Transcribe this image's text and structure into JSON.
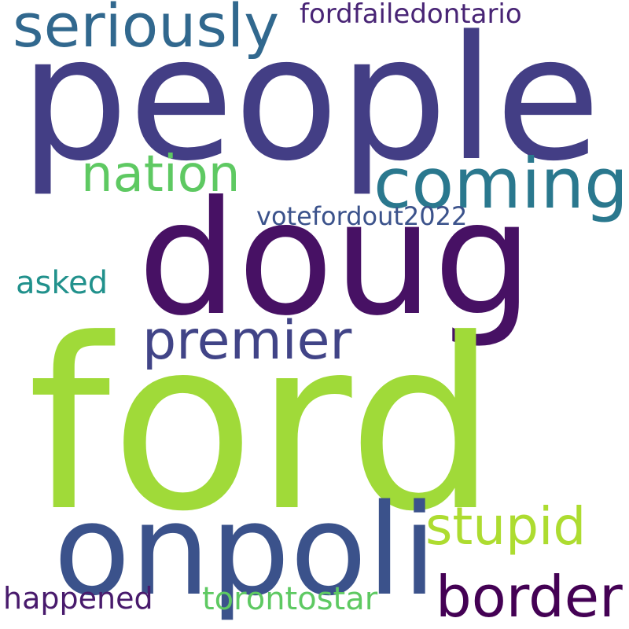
{
  "words": {
    "ford": {
      "text": "ford",
      "color": "#a0da39"
    },
    "people": {
      "text": "people",
      "color": "#433e85"
    },
    "doug": {
      "text": "doug",
      "color": "#471164"
    },
    "onpoli": {
      "text": "onpoli",
      "color": "#3b528b"
    },
    "coming": {
      "text": "coming",
      "color": "#2a788e"
    },
    "seriously": {
      "text": "seriously",
      "color": "#31688e"
    },
    "nation": {
      "text": "nation",
      "color": "#5ec962"
    },
    "premier": {
      "text": "premier",
      "color": "#414487"
    },
    "stupid": {
      "text": "stupid",
      "color": "#addc30"
    },
    "border": {
      "text": "border",
      "color": "#440154"
    },
    "fordfailedontario": {
      "text": "fordfailedontario",
      "color": "#482475"
    },
    "votefordout2022": {
      "text": "votefordout2022",
      "color": "#3b528b"
    },
    "asked": {
      "text": "asked",
      "color": "#21918c"
    },
    "happened": {
      "text": "happened",
      "color": "#481a6c"
    },
    "torontostar": {
      "text": "torontostar",
      "color": "#5ec962"
    }
  }
}
